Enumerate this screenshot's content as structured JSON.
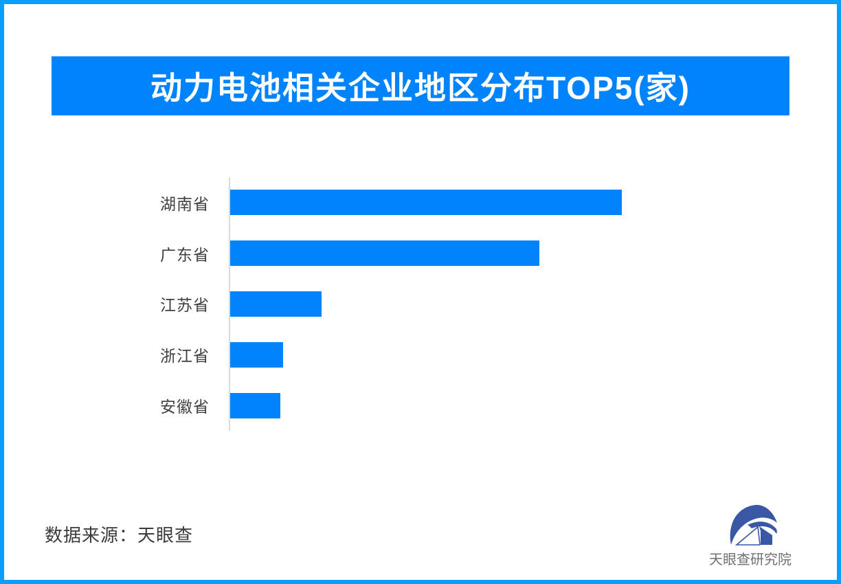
{
  "page": {
    "background": "#ffffff",
    "border_color": "#0a9efd"
  },
  "header": {
    "title": "动力电池相关企业地区分布TOP5(家)",
    "banner_color": "#0184fb",
    "title_color": "#ffffff"
  },
  "chart_data": {
    "type": "bar",
    "orientation": "horizontal",
    "title": "动力电池相关企业地区分布TOP5(家)",
    "categories": [
      "湖南省",
      "广东省",
      "江苏省",
      "浙江省",
      "安徽省"
    ],
    "values": [
      100,
      79,
      23.3,
      13.5,
      12.8
    ],
    "values_note": "no numeric axis ticks or data labels are rendered in the image; values are estimated proportions of bar length relative to the longest bar (湖南省 = 100)",
    "unit": "家",
    "xlabel": "",
    "ylabel": "",
    "grid": false,
    "legend": false,
    "axis_ticks_shown": false,
    "value_labels_shown": false,
    "bar_color": "#0184fb",
    "axis_line_color": "#dadada",
    "label_color": "#3f3f3f"
  },
  "footer": {
    "source_text": "数据来源：天眼查",
    "logo_text": "天眼查研究院",
    "logo_color": "#3a57a5",
    "logo_text_color": "#707070"
  }
}
